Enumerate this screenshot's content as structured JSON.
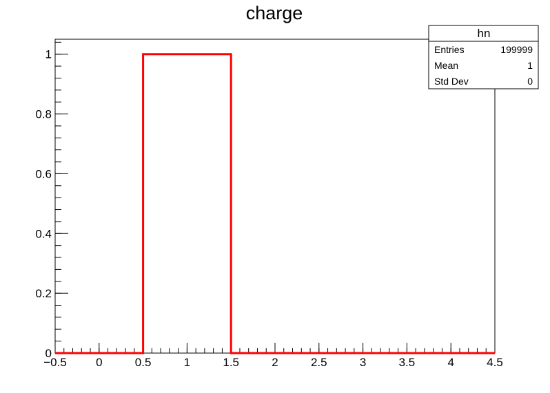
{
  "chart_data": {
    "type": "histogram",
    "title": "charge",
    "xlabel": "",
    "ylabel": "",
    "xlim": [
      -0.5,
      4.5
    ],
    "ylim": [
      0,
      1.05
    ],
    "bin_edges": [
      -0.5,
      0.5,
      1.5,
      2.5,
      3.5,
      4.5
    ],
    "values": [
      0,
      1,
      0,
      0,
      0
    ],
    "line_color": "#ff0000",
    "x_ticks": [
      -0.5,
      0,
      0.5,
      1,
      1.5,
      2,
      2.5,
      3,
      3.5,
      4,
      4.5
    ],
    "x_tick_labels": [
      "−0.5",
      "0",
      "0.5",
      "1",
      "1.5",
      "2",
      "2.5",
      "3",
      "3.5",
      "4",
      "4.5"
    ],
    "y_ticks": [
      0,
      0.2,
      0.4,
      0.6,
      0.8,
      1
    ],
    "y_tick_labels": [
      "0",
      "0.2",
      "0.4",
      "0.6",
      "0.8",
      "1"
    ],
    "grid": false
  },
  "stats_box": {
    "title": "hn",
    "rows": [
      {
        "label": "Entries",
        "value": "199999"
      },
      {
        "label": "Mean",
        "value": "1"
      },
      {
        "label": "Std Dev",
        "value": "0"
      }
    ]
  }
}
